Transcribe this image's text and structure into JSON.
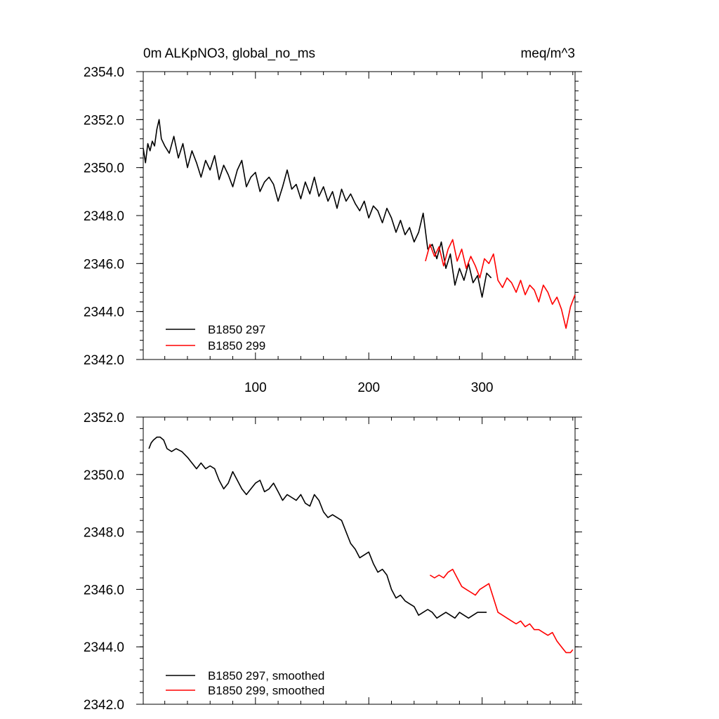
{
  "chart_data": [
    {
      "type": "line",
      "title_left": "0m ALKpNO3, global_no_ms",
      "title_right": "meq/m^3",
      "xlim": [
        1,
        382
      ],
      "ylim": [
        2342.0,
        2354.0
      ],
      "x_ticks": [
        100,
        200,
        300
      ],
      "x_tick_labels": [
        "100",
        "200",
        "300"
      ],
      "y_ticks": [
        2342,
        2344,
        2346,
        2348,
        2350,
        2352,
        2354
      ],
      "y_tick_labels": [
        "2342.0",
        "2344.0",
        "2346.0",
        "2348.0",
        "2350.0",
        "2352.0",
        "2354.0"
      ],
      "legend_position": "bottom-left",
      "series": [
        {
          "name": "B1850 297",
          "color": "#000000",
          "x": [
            1,
            3,
            5,
            7,
            9,
            11,
            13,
            15,
            17,
            20,
            24,
            28,
            32,
            36,
            40,
            44,
            48,
            52,
            56,
            60,
            64,
            68,
            72,
            76,
            80,
            84,
            88,
            92,
            96,
            100,
            104,
            108,
            112,
            116,
            120,
            124,
            128,
            132,
            136,
            140,
            144,
            148,
            152,
            156,
            160,
            164,
            168,
            172,
            176,
            180,
            184,
            188,
            192,
            196,
            200,
            204,
            208,
            212,
            216,
            220,
            224,
            228,
            232,
            236,
            240,
            244,
            248,
            252,
            256,
            260,
            264,
            268,
            272,
            276,
            280,
            284,
            288,
            292,
            296,
            300,
            304,
            308
          ],
          "values": [
            2350.8,
            2350.2,
            2351.0,
            2350.7,
            2351.1,
            2350.9,
            2351.6,
            2352.0,
            2351.2,
            2350.9,
            2350.6,
            2351.3,
            2350.4,
            2351.0,
            2350.0,
            2350.7,
            2350.2,
            2349.6,
            2350.3,
            2349.9,
            2350.5,
            2349.5,
            2350.1,
            2349.7,
            2349.2,
            2349.9,
            2350.3,
            2349.2,
            2349.6,
            2349.8,
            2349.0,
            2349.4,
            2349.6,
            2349.3,
            2348.6,
            2349.2,
            2349.9,
            2349.1,
            2349.3,
            2348.7,
            2349.4,
            2348.9,
            2349.6,
            2348.8,
            2349.2,
            2348.6,
            2349.0,
            2348.3,
            2349.1,
            2348.6,
            2348.9,
            2348.5,
            2348.2,
            2348.6,
            2347.9,
            2348.4,
            2348.2,
            2347.7,
            2348.3,
            2347.9,
            2347.3,
            2347.8,
            2347.2,
            2347.5,
            2346.9,
            2347.3,
            2348.1,
            2346.6,
            2346.8,
            2346.2,
            2346.9,
            2345.8,
            2346.4,
            2345.1,
            2345.8,
            2345.3,
            2346.0,
            2345.2,
            2345.5,
            2344.6,
            2345.6,
            2345.4
          ]
        },
        {
          "name": "B1850 299",
          "color": "#ff0000",
          "x": [
            250,
            254,
            258,
            262,
            266,
            270,
            274,
            278,
            282,
            286,
            290,
            294,
            298,
            302,
            306,
            310,
            314,
            318,
            322,
            326,
            330,
            334,
            338,
            342,
            346,
            350,
            354,
            358,
            362,
            366,
            370,
            374,
            378,
            382
          ],
          "values": [
            2346.1,
            2346.8,
            2346.3,
            2346.7,
            2345.9,
            2346.6,
            2347.0,
            2346.1,
            2346.6,
            2345.8,
            2346.3,
            2345.9,
            2345.4,
            2346.2,
            2346.0,
            2346.4,
            2345.3,
            2345.0,
            2345.4,
            2345.2,
            2344.8,
            2345.3,
            2344.7,
            2345.1,
            2344.9,
            2344.4,
            2345.1,
            2344.8,
            2344.3,
            2344.6,
            2344.1,
            2343.3,
            2344.2,
            2344.7
          ]
        }
      ]
    },
    {
      "type": "line",
      "xlim": [
        1,
        382
      ],
      "ylim": [
        2342.0,
        2352.0
      ],
      "y_ticks": [
        2342,
        2344,
        2346,
        2348,
        2350,
        2352
      ],
      "y_tick_labels": [
        "2342.0",
        "2344.0",
        "2346.0",
        "2348.0",
        "2350.0",
        "2352.0"
      ],
      "x_ticks": [
        100,
        200,
        300
      ],
      "legend_position": "bottom-left",
      "series": [
        {
          "name": "B1850 297, smoothed",
          "color": "#000000",
          "x": [
            6,
            8,
            10,
            13,
            16,
            19,
            22,
            26,
            30,
            35,
            40,
            44,
            48,
            52,
            56,
            60,
            64,
            68,
            72,
            76,
            80,
            84,
            88,
            92,
            96,
            100,
            104,
            108,
            112,
            116,
            120,
            124,
            128,
            132,
            136,
            140,
            144,
            148,
            152,
            156,
            160,
            164,
            168,
            172,
            176,
            180,
            184,
            188,
            192,
            196,
            200,
            204,
            208,
            212,
            216,
            220,
            224,
            228,
            232,
            236,
            240,
            244,
            248,
            252,
            256,
            260,
            264,
            268,
            272,
            276,
            280,
            284,
            288,
            292,
            296,
            300,
            304
          ],
          "values": [
            2350.9,
            2351.1,
            2351.2,
            2351.3,
            2351.3,
            2351.2,
            2350.9,
            2350.8,
            2350.9,
            2350.8,
            2350.6,
            2350.4,
            2350.2,
            2350.4,
            2350.2,
            2350.3,
            2350.2,
            2349.8,
            2349.5,
            2349.7,
            2350.1,
            2349.8,
            2349.5,
            2349.3,
            2349.5,
            2349.7,
            2349.8,
            2349.4,
            2349.5,
            2349.7,
            2349.4,
            2349.1,
            2349.3,
            2349.2,
            2349.1,
            2349.3,
            2349.0,
            2348.9,
            2349.3,
            2349.1,
            2348.7,
            2348.5,
            2348.6,
            2348.5,
            2348.4,
            2348.0,
            2347.6,
            2347.4,
            2347.1,
            2347.2,
            2347.3,
            2346.9,
            2346.6,
            2346.7,
            2346.5,
            2346.0,
            2345.7,
            2345.8,
            2345.6,
            2345.5,
            2345.4,
            2345.1,
            2345.2,
            2345.3,
            2345.2,
            2345.0,
            2345.1,
            2345.2,
            2345.1,
            2345.0,
            2345.2,
            2345.1,
            2345.0,
            2345.1,
            2345.2,
            2345.2,
            2345.2
          ]
        },
        {
          "name": "B1850 299, smoothed",
          "color": "#ff0000",
          "x": [
            254,
            258,
            262,
            266,
            270,
            274,
            278,
            282,
            286,
            290,
            294,
            298,
            302,
            306,
            310,
            314,
            318,
            322,
            326,
            330,
            334,
            338,
            342,
            346,
            350,
            354,
            358,
            362,
            366,
            370,
            374,
            378,
            380
          ],
          "values": [
            2346.5,
            2346.4,
            2346.5,
            2346.4,
            2346.6,
            2346.7,
            2346.4,
            2346.1,
            2346.0,
            2345.9,
            2345.8,
            2346.0,
            2346.1,
            2346.2,
            2345.7,
            2345.2,
            2345.1,
            2345.0,
            2344.9,
            2344.8,
            2344.9,
            2344.7,
            2344.8,
            2344.6,
            2344.6,
            2344.5,
            2344.4,
            2344.5,
            2344.2,
            2344.0,
            2343.8,
            2343.8,
            2343.9
          ]
        }
      ]
    }
  ]
}
